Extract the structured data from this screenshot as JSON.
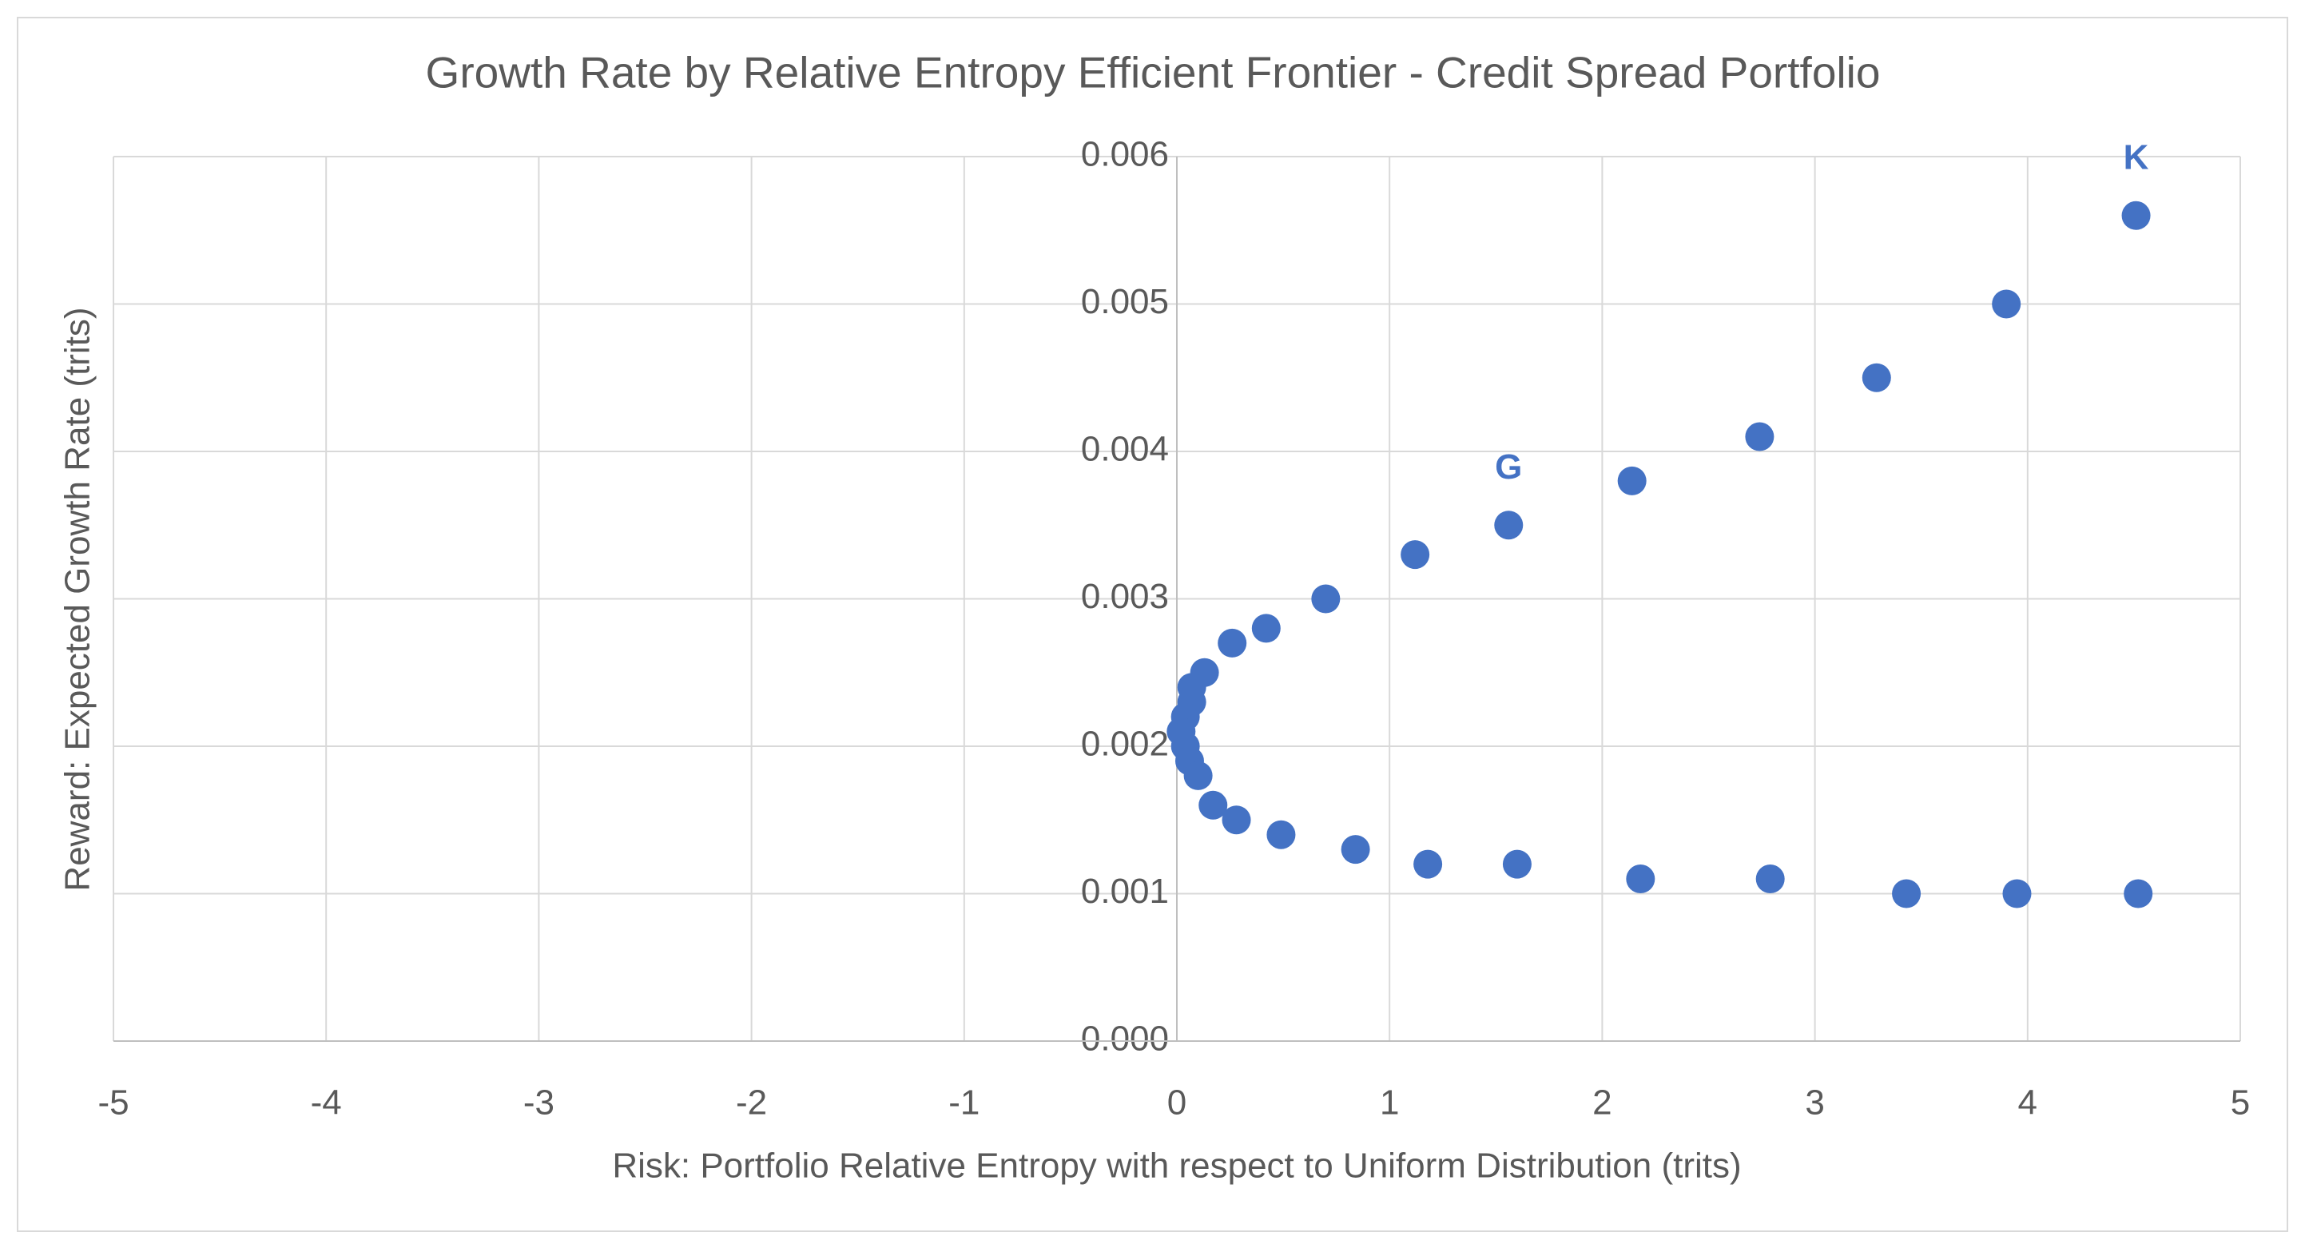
{
  "chart_data": {
    "type": "scatter",
    "title": "Growth Rate by Relative Entropy Efficient Frontier - Credit Spread Portfolio",
    "x_label": "Risk: Portfolio Relative Entropy with respect to Uniform Distribution (trits)",
    "y_label": "Reward: Expected Growth Rate (trits)",
    "xlim": [
      -5,
      5
    ],
    "xticks": [
      -5,
      -4,
      -3,
      -2,
      -1,
      0,
      1,
      2,
      3,
      4,
      5
    ],
    "ylim": [
      0,
      0.006
    ],
    "yticks": [
      {
        "value": 0,
        "label": "0.000"
      },
      0.001,
      0.002,
      0.003,
      0.004,
      0.005,
      0.006
    ],
    "grid": true,
    "series": [
      {
        "color": "#4472c4",
        "x": [
          4.51,
          3.9,
          3.29,
          2.74,
          2.14,
          1.56,
          1.12,
          0.7,
          0.42,
          0.26,
          0.13,
          0.07,
          0.07,
          0.04,
          0.02,
          0.04,
          0.06,
          0.1,
          0.17,
          0.28,
          0.49,
          0.84,
          1.18,
          1.6,
          2.18,
          2.79,
          3.43,
          3.95,
          4.52
        ],
        "values": [
          0.0056,
          0.005,
          0.0045,
          0.0041,
          0.0038,
          0.0035,
          0.0033,
          0.003,
          0.0028,
          0.0027,
          0.0025,
          0.0024,
          0.0023,
          0.0022,
          0.0021,
          0.002,
          0.0019,
          0.0018,
          0.0016,
          0.0015,
          0.0014,
          0.0013,
          0.0012,
          0.0012,
          0.0011,
          0.0011,
          0.001,
          0.001,
          0.001
        ],
        "point_labels": [
          "K",
          null,
          null,
          null,
          null,
          "G",
          null,
          null,
          null,
          null,
          null,
          null,
          null,
          null,
          null,
          null,
          null,
          null,
          null,
          null,
          null,
          null,
          null,
          null,
          null,
          null,
          null,
          null,
          null
        ]
      }
    ]
  }
}
